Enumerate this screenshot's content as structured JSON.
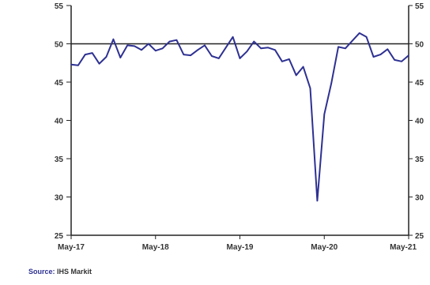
{
  "chart_data": {
    "type": "line",
    "title": "",
    "xlabel": "",
    "ylabel": "",
    "ylim": [
      25,
      55
    ],
    "yticks": [
      25,
      30,
      35,
      40,
      45,
      50,
      55
    ],
    "right_axis_ticks": [
      25,
      30,
      35,
      40,
      45,
      50,
      55
    ],
    "xticks": [
      {
        "label": "May-17",
        "index": 0
      },
      {
        "label": "May-18",
        "index": 12
      },
      {
        "label": "May-19",
        "index": 24
      },
      {
        "label": "May-20",
        "index": 36
      },
      {
        "label": "May-21",
        "index": 48
      }
    ],
    "reference_line": 50,
    "grid": false,
    "colors": {
      "series": "#2e3192",
      "reference": "#222222",
      "axis": "#222222"
    },
    "series": [
      {
        "x": [
          "May-17",
          "Jun-17",
          "Jul-17",
          "Aug-17",
          "Sep-17",
          "Oct-17",
          "Nov-17",
          "Dec-17",
          "Jan-18",
          "Feb-18",
          "Mar-18",
          "Apr-18",
          "May-18",
          "Jun-18",
          "Jul-18",
          "Aug-18",
          "Sep-18",
          "Oct-18",
          "Nov-18",
          "Dec-18",
          "Jan-19",
          "Feb-19",
          "Mar-19",
          "Apr-19",
          "May-19",
          "Jun-19",
          "Jul-19",
          "Aug-19",
          "Sep-19",
          "Oct-19",
          "Nov-19",
          "Dec-19",
          "Jan-20",
          "Feb-20",
          "Mar-20",
          "Apr-20",
          "May-20",
          "Jun-20",
          "Jul-20",
          "Aug-20",
          "Sep-20",
          "Oct-20",
          "Nov-20",
          "Dec-20",
          "Jan-21",
          "Feb-21",
          "Mar-21",
          "Apr-21",
          "May-21"
        ],
        "values": [
          47.3,
          47.2,
          48.6,
          48.8,
          47.4,
          48.3,
          50.6,
          48.2,
          49.8,
          49.7,
          49.2,
          50.0,
          49.1,
          49.4,
          50.3,
          50.5,
          48.6,
          48.5,
          49.2,
          49.8,
          48.4,
          48.1,
          49.5,
          50.9,
          48.1,
          49.0,
          50.3,
          49.4,
          49.5,
          49.2,
          47.7,
          48.0,
          45.9,
          47.0,
          44.2,
          29.5,
          40.8,
          44.8,
          49.6,
          49.4,
          50.4,
          51.4,
          50.9,
          48.3,
          48.6,
          49.3,
          47.9,
          47.7,
          48.5
        ]
      }
    ]
  },
  "footer": {
    "source_label": "Source:",
    "source_value": "IHS Markit"
  }
}
